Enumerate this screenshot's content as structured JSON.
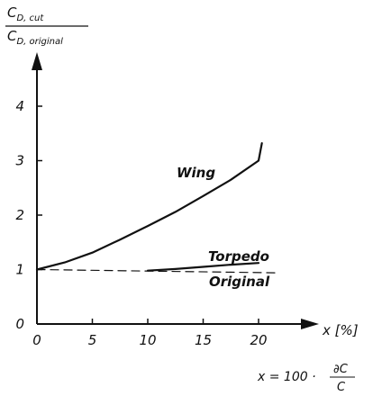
{
  "chart_data": {
    "type": "line",
    "ylabel": {
      "numerator": {
        "main": "C",
        "sub": "D, cut"
      },
      "denominator": {
        "main": "C",
        "sub": "D, original"
      }
    },
    "xlabel": "x [%]",
    "formula": {
      "lhs": "x = 100 ·",
      "numerator": "∂C",
      "denominator": "C"
    },
    "xlim": [
      0,
      25
    ],
    "ylim": [
      0,
      5
    ],
    "x_ticks": [
      "0",
      "5",
      "10",
      "15",
      "20"
    ],
    "x_tick_values": [
      0,
      5,
      10,
      15,
      20
    ],
    "y_ticks": [
      "0",
      "1",
      "2",
      "3",
      "4"
    ],
    "y_tick_values": [
      0,
      1,
      2,
      3,
      4
    ],
    "grid": false,
    "series": [
      {
        "name": "Wing",
        "style": "solid",
        "points": [
          [
            0,
            1.0
          ],
          [
            2.5,
            1.13
          ],
          [
            5,
            1.31
          ],
          [
            7.5,
            1.55
          ],
          [
            10,
            1.8
          ],
          [
            12.5,
            2.06
          ],
          [
            15,
            2.35
          ],
          [
            17.5,
            2.65
          ],
          [
            20,
            3.0
          ],
          [
            20.3,
            3.32
          ]
        ]
      },
      {
        "name": "Torpedo",
        "style": "solid",
        "points": [
          [
            10,
            0.98
          ],
          [
            12.5,
            1.01
          ],
          [
            15,
            1.05
          ],
          [
            17.5,
            1.09
          ],
          [
            20,
            1.12
          ]
        ]
      },
      {
        "name": "Original",
        "style": "dashed",
        "points": [
          [
            0,
            1.0
          ],
          [
            21.5,
            0.94
          ]
        ]
      }
    ]
  }
}
